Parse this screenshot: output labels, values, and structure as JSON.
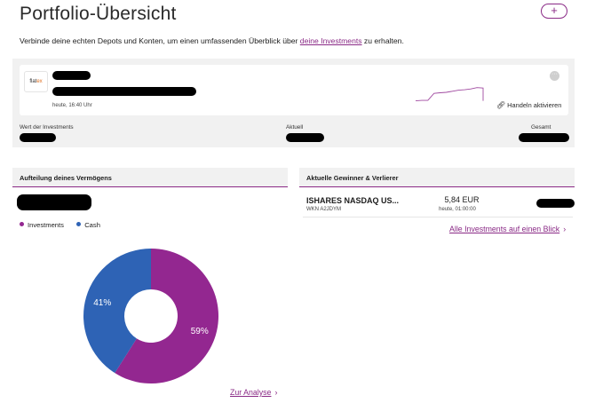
{
  "header": {
    "title": "Portfolio-Übersicht",
    "add_label": "+"
  },
  "intro": {
    "before": "Verbinde deine echten Depots und Konten, um einen umfassenden Überblick über ",
    "link": "deine Investments",
    "after": " zu erhalten."
  },
  "account": {
    "logo_text_a": "flat",
    "logo_text_b": "ex",
    "updated": "heute, 16:40 Uhr",
    "more_icon": "more-dots-icon",
    "trade_icon": "link-icon",
    "trade_label": "Handeln aktivieren",
    "value_label": "Wert der Investments",
    "current_label": "Aktuell",
    "total_label": "Gesamt",
    "sparkline": [
      0.1,
      0.12,
      0.12,
      0.45,
      0.48,
      0.5,
      0.55,
      0.6,
      0.62,
      0.66,
      0.72,
      0.7,
      0.1
    ]
  },
  "allocation": {
    "title": "Aufteilung deines Vermögens",
    "legend": [
      {
        "label": "Investments",
        "color": "#932790"
      },
      {
        "label": "Cash",
        "color": "#2e63b5"
      }
    ],
    "slices": [
      {
        "name": "Investments",
        "percent": 59,
        "label": "59%",
        "color": "#932790"
      },
      {
        "name": "Cash",
        "percent": 41,
        "label": "41%",
        "color": "#2e63b5"
      }
    ],
    "link_label": "Zur Analyse",
    "chevron": "›"
  },
  "movers": {
    "title": "Aktuelle Gewinner & Verlierer",
    "rows": [
      {
        "name": "ISHARES NASDAQ US...",
        "wkn": "WKN A2JDYM",
        "price": "5,84 EUR",
        "time": "heute, 01:00:00"
      }
    ],
    "link_label": "Alle Investments auf einen Blick",
    "chevron": "›"
  },
  "colors": {
    "accent": "#8a2a86",
    "panel_bg": "#f1f1f1"
  }
}
